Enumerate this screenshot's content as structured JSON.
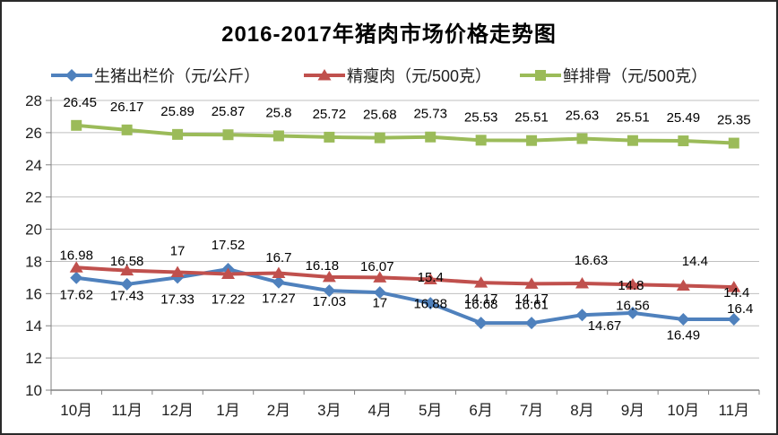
{
  "chart_data": {
    "type": "line",
    "title": "2016-2017年猪肉市场价格走势图",
    "categories": [
      "10月",
      "11月",
      "12月",
      "1月",
      "2月",
      "3月",
      "4月",
      "5月",
      "6月",
      "7月",
      "8月",
      "9月",
      "10月",
      "11月"
    ],
    "series": [
      {
        "id": "pig-price",
        "name": "生猪出栏价（元/公斤）",
        "color": "#4F81BD",
        "marker": "diamond",
        "values": [
          16.98,
          16.58,
          17,
          17.52,
          16.7,
          16.18,
          16.07,
          15.4,
          14.17,
          14.17,
          14.67,
          14.8,
          14.4,
          14.4
        ],
        "label_offsets": [
          [
            0,
            -25
          ],
          [
            0,
            -26
          ],
          [
            0,
            -30
          ],
          [
            0,
            -27
          ],
          [
            0,
            -28
          ],
          [
            -8,
            -28
          ],
          [
            -3,
            -29
          ],
          [
            0,
            -29
          ],
          [
            0,
            -27
          ],
          [
            0,
            -27
          ],
          [
            25,
            12
          ],
          [
            -2,
            -31
          ],
          [
            13,
            -65
          ],
          [
            3,
            -30
          ]
        ]
      },
      {
        "id": "lean-pork",
        "name": "精瘦肉（元/500克）",
        "color": "#C0504D",
        "marker": "triangle",
        "values": [
          17.62,
          17.43,
          17.33,
          17.22,
          17.27,
          17.03,
          17,
          16.88,
          16.68,
          16.61,
          16.63,
          16.56,
          16.49,
          16.4
        ],
        "label_offsets": [
          [
            0,
            30
          ],
          [
            0,
            28
          ],
          [
            0,
            30
          ],
          [
            0,
            28
          ],
          [
            0,
            28
          ],
          [
            0,
            27
          ],
          [
            0,
            28
          ],
          [
            0,
            27
          ],
          [
            0,
            24
          ],
          [
            0,
            23
          ],
          [
            10,
            -26
          ],
          [
            0,
            23
          ],
          [
            0,
            55
          ],
          [
            7,
            24
          ]
        ]
      },
      {
        "id": "spare-ribs",
        "name": "鲜排骨（元/500克）",
        "color": "#9BBB59",
        "marker": "square",
        "values": [
          26.45,
          26.17,
          25.89,
          25.87,
          25.8,
          25.72,
          25.68,
          25.73,
          25.53,
          25.51,
          25.63,
          25.51,
          25.49,
          25.35
        ],
        "label_offsets": [
          [
            4,
            -26
          ],
          [
            0,
            -26
          ],
          [
            0,
            -26
          ],
          [
            0,
            -26
          ],
          [
            0,
            -26
          ],
          [
            0,
            -26
          ],
          [
            0,
            -26
          ],
          [
            0,
            -26
          ],
          [
            0,
            -26
          ],
          [
            0,
            -26
          ],
          [
            0,
            -26
          ],
          [
            0,
            -26
          ],
          [
            0,
            -26
          ],
          [
            0,
            -26
          ]
        ]
      }
    ],
    "xlabel": "",
    "ylabel": "",
    "ylim": [
      10,
      28
    ],
    "ystep": 2,
    "grid": true,
    "legend_position": "top",
    "colors": {
      "grid": "#BFBFBF",
      "axis": "#808080",
      "text": "#1f1f1f",
      "label": "#000000",
      "border": "#2a2a2a",
      "background": "#FFFFFF"
    }
  }
}
